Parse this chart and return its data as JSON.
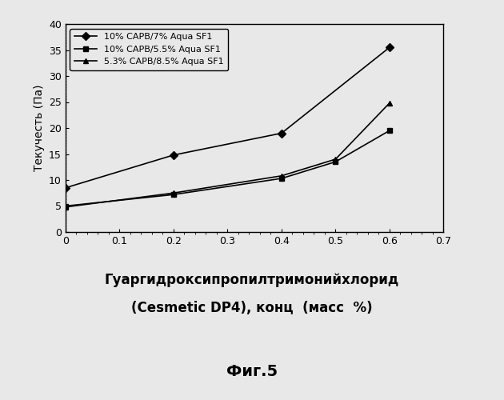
{
  "series": [
    {
      "label": "10% CAPB/7% Aqua SF1",
      "x": [
        0,
        0.2,
        0.4,
        0.6
      ],
      "y": [
        8.5,
        14.8,
        19.0,
        35.5
      ],
      "marker": "D",
      "color": "#000000",
      "linestyle": "-",
      "markersize": 5
    },
    {
      "label": "10% CAPB/5.5% Aqua SF1",
      "x": [
        0,
        0.2,
        0.4,
        0.5,
        0.6
      ],
      "y": [
        5.0,
        7.2,
        10.3,
        13.5,
        19.5
      ],
      "marker": "s",
      "color": "#000000",
      "linestyle": "-",
      "markersize": 5
    },
    {
      "label": "5.3% CAPB/8.5% Aqua SF1",
      "x": [
        0,
        0.2,
        0.4,
        0.5,
        0.6
      ],
      "y": [
        4.8,
        7.5,
        10.8,
        14.0,
        24.8
      ],
      "marker": "^",
      "color": "#000000",
      "linestyle": "-",
      "markersize": 5
    }
  ],
  "xlabel_line1": "Гуаргидроксипропилтримонийхлорид",
  "xlabel_line2": "(Cesmetic DP4), конц  (масс  %)",
  "ylabel": "Текучесть (Па)",
  "title": "",
  "xlim": [
    0,
    0.7
  ],
  "ylim": [
    0,
    40
  ],
  "xticks": [
    0,
    0.1,
    0.2,
    0.3,
    0.4,
    0.5,
    0.6,
    0.7
  ],
  "yticks": [
    0,
    5,
    10,
    15,
    20,
    25,
    30,
    35,
    40
  ],
  "caption": "Фиг.5",
  "legend_labels": [
    "10% CAPB/7% Aqua SF1",
    "10% CAPB/5.5% Aqua SF1",
    "5.3% CAPB/8.5% Aqua SF1"
  ],
  "figsize": [
    6.3,
    5.0
  ],
  "dpi": 100,
  "bg_color": "#e8e8e8"
}
